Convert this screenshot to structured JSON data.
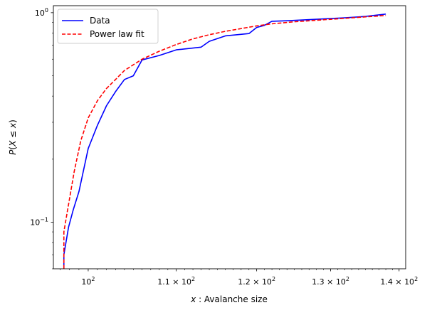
{
  "chart_data": {
    "type": "line",
    "xlabel": "x : Avalanche size",
    "ylabel": "P(X ≤ x)",
    "xscale": "log",
    "yscale": "log",
    "xlim": [
      96.3,
      141
    ],
    "ylim": [
      0.06,
      1.08
    ],
    "grid": false,
    "legend_position": "top-left",
    "x_ticks": [
      {
        "value": 100,
        "base": "10",
        "exp": "2",
        "coef": ""
      },
      {
        "value": 110,
        "base": "10",
        "exp": "2",
        "coef": "1.1 × "
      },
      {
        "value": 120,
        "base": "10",
        "exp": "2",
        "coef": "1.2 × "
      },
      {
        "value": 130,
        "base": "10",
        "exp": "2",
        "coef": "1.3 × "
      },
      {
        "value": 140,
        "base": "10",
        "exp": "2",
        "coef": "1.4 × "
      }
    ],
    "y_ticks": [
      {
        "value": 0.1,
        "base": "10",
        "exp": "−1"
      },
      {
        "value": 1,
        "base": "10",
        "exp": "0"
      }
    ],
    "series": [
      {
        "name": "Data",
        "color": "#0000ff",
        "style": "solid",
        "points": [
          [
            97.4,
            0.06
          ],
          [
            97.4,
            0.07
          ],
          [
            97.9,
            0.095
          ],
          [
            98.4,
            0.115
          ],
          [
            99.0,
            0.14
          ],
          [
            100.0,
            0.225
          ],
          [
            101.0,
            0.29
          ],
          [
            102.0,
            0.36
          ],
          [
            103.0,
            0.42
          ],
          [
            104.0,
            0.48
          ],
          [
            105.0,
            0.5
          ],
          [
            106.0,
            0.595
          ],
          [
            108.0,
            0.625
          ],
          [
            110.0,
            0.665
          ],
          [
            113.0,
            0.685
          ],
          [
            114.0,
            0.73
          ],
          [
            116.0,
            0.775
          ],
          [
            119.0,
            0.795
          ],
          [
            120.0,
            0.85
          ],
          [
            121.0,
            0.87
          ],
          [
            122.0,
            0.91
          ],
          [
            124.0,
            0.915
          ],
          [
            132.0,
            0.945
          ],
          [
            135.0,
            0.96
          ],
          [
            138.0,
            0.985
          ]
        ]
      },
      {
        "name": "Power law fit",
        "color": "#ff0000",
        "style": "dashed",
        "points": [
          [
            97.4,
            0.06
          ],
          [
            97.4,
            0.09
          ],
          [
            97.8,
            0.115
          ],
          [
            98.5,
            0.175
          ],
          [
            99.2,
            0.245
          ],
          [
            100.0,
            0.315
          ],
          [
            101.0,
            0.38
          ],
          [
            102.0,
            0.435
          ],
          [
            103.0,
            0.48
          ],
          [
            104.0,
            0.53
          ],
          [
            106.0,
            0.6
          ],
          [
            108.0,
            0.655
          ],
          [
            110.0,
            0.705
          ],
          [
            112.0,
            0.75
          ],
          [
            114.0,
            0.785
          ],
          [
            116.0,
            0.815
          ],
          [
            118.0,
            0.84
          ],
          [
            120.0,
            0.865
          ],
          [
            122.0,
            0.885
          ],
          [
            125.0,
            0.905
          ],
          [
            130.0,
            0.93
          ],
          [
            135.0,
            0.955
          ],
          [
            138.0,
            0.97
          ]
        ]
      }
    ]
  }
}
